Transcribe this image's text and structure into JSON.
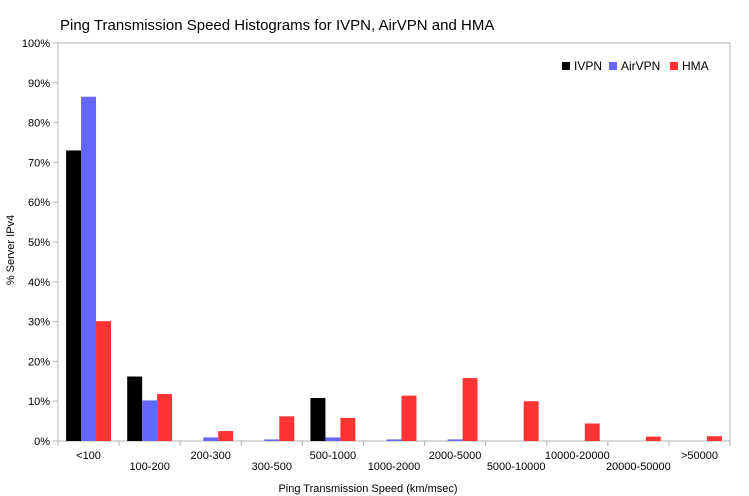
{
  "chart_data": {
    "type": "bar",
    "title": "Ping Transmission Speed Histograms for IVPN, AirVPN and HMA",
    "xlabel": "Ping Transmission Speed (km/msec)",
    "ylabel": "% Server IPv4",
    "ylim": [
      0,
      100
    ],
    "yticks": [
      "0%",
      "10%",
      "20%",
      "30%",
      "40%",
      "50%",
      "60%",
      "70%",
      "80%",
      "90%",
      "100%"
    ],
    "categories": [
      "<100",
      "100-200",
      "200-300",
      "300-500",
      "500-1000",
      "1000-2000",
      "2000-5000",
      "5000-10000",
      "10000-20000",
      "20000-50000",
      ">50000"
    ],
    "series": [
      {
        "name": "IVPN",
        "color": "#000000",
        "values": [
          73,
          16.2,
          0,
          0,
          10.8,
          0,
          0,
          0,
          0,
          0,
          0
        ]
      },
      {
        "name": "AirVPN",
        "color": "#6666ff",
        "values": [
          86.5,
          10.2,
          0.9,
          0.4,
          0.9,
          0.4,
          0.4,
          0,
          0,
          0,
          0
        ]
      },
      {
        "name": "HMA",
        "color": "#ff3333",
        "values": [
          30.1,
          11.8,
          2.5,
          6.2,
          5.8,
          11.4,
          15.8,
          10,
          4.4,
          1.1,
          1.2
        ]
      }
    ],
    "legend_position": "top-right",
    "grid": false
  }
}
